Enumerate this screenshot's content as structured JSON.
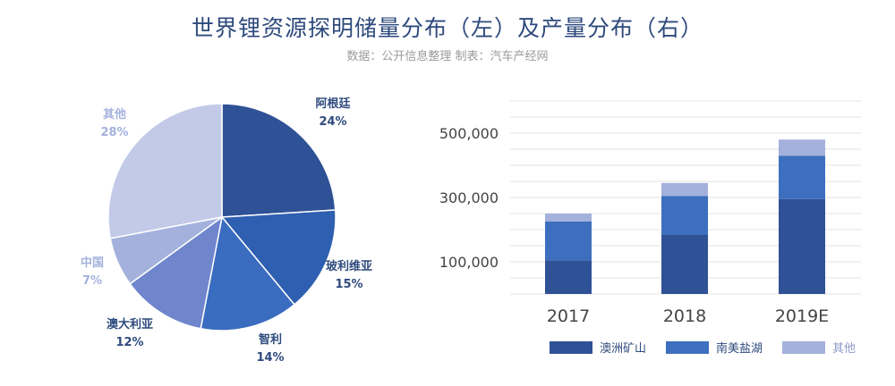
{
  "header": {
    "title": "世界锂资源探明储量分布（左）及产量分布（右）",
    "source": "数据：公开信息整理 制表：汽车产经网"
  },
  "colors": {
    "dark": "#2f5196",
    "mid": "#3d6fbe",
    "light": "#a4b1dd",
    "pie": [
      "#2f5196",
      "#2f5fb0",
      "#3a6cc0",
      "#6f86cd",
      "#a4b1dd",
      "#c2cae8"
    ],
    "pie_label_dark": "#2e4a7d",
    "pie_label_light": "#a4b1dd",
    "axis_text": "#444444",
    "grid": "#e3e3e3"
  },
  "chart_data": [
    {
      "type": "pie",
      "title": "",
      "slices": [
        {
          "label": "阿根廷",
          "value": 24,
          "display": "24%"
        },
        {
          "label": "玻利维亚",
          "value": 15,
          "display": "15%"
        },
        {
          "label": "智利",
          "value": 14,
          "display": "14%"
        },
        {
          "label": "澳大利亚",
          "value": 12,
          "display": "12%"
        },
        {
          "label": "中国",
          "value": 7,
          "display": "7%"
        },
        {
          "label": "其他",
          "value": 28,
          "display": "28%"
        }
      ]
    },
    {
      "type": "bar",
      "stacked": true,
      "title": "",
      "categories": [
        "2017",
        "2018",
        "2019E"
      ],
      "series": [
        {
          "name": "澳洲矿山",
          "values": [
            105000,
            185000,
            295000
          ]
        },
        {
          "name": "南美盐湖",
          "values": [
            120000,
            120000,
            135000
          ]
        },
        {
          "name": "其他",
          "values": [
            25000,
            40000,
            50000
          ]
        }
      ],
      "yticks": [
        100000,
        300000,
        500000
      ],
      "ytick_labels": [
        "100,000",
        "300,000",
        "500,000"
      ],
      "ylim": [
        0,
        600000
      ],
      "grid": true,
      "legend": "bottom"
    }
  ]
}
